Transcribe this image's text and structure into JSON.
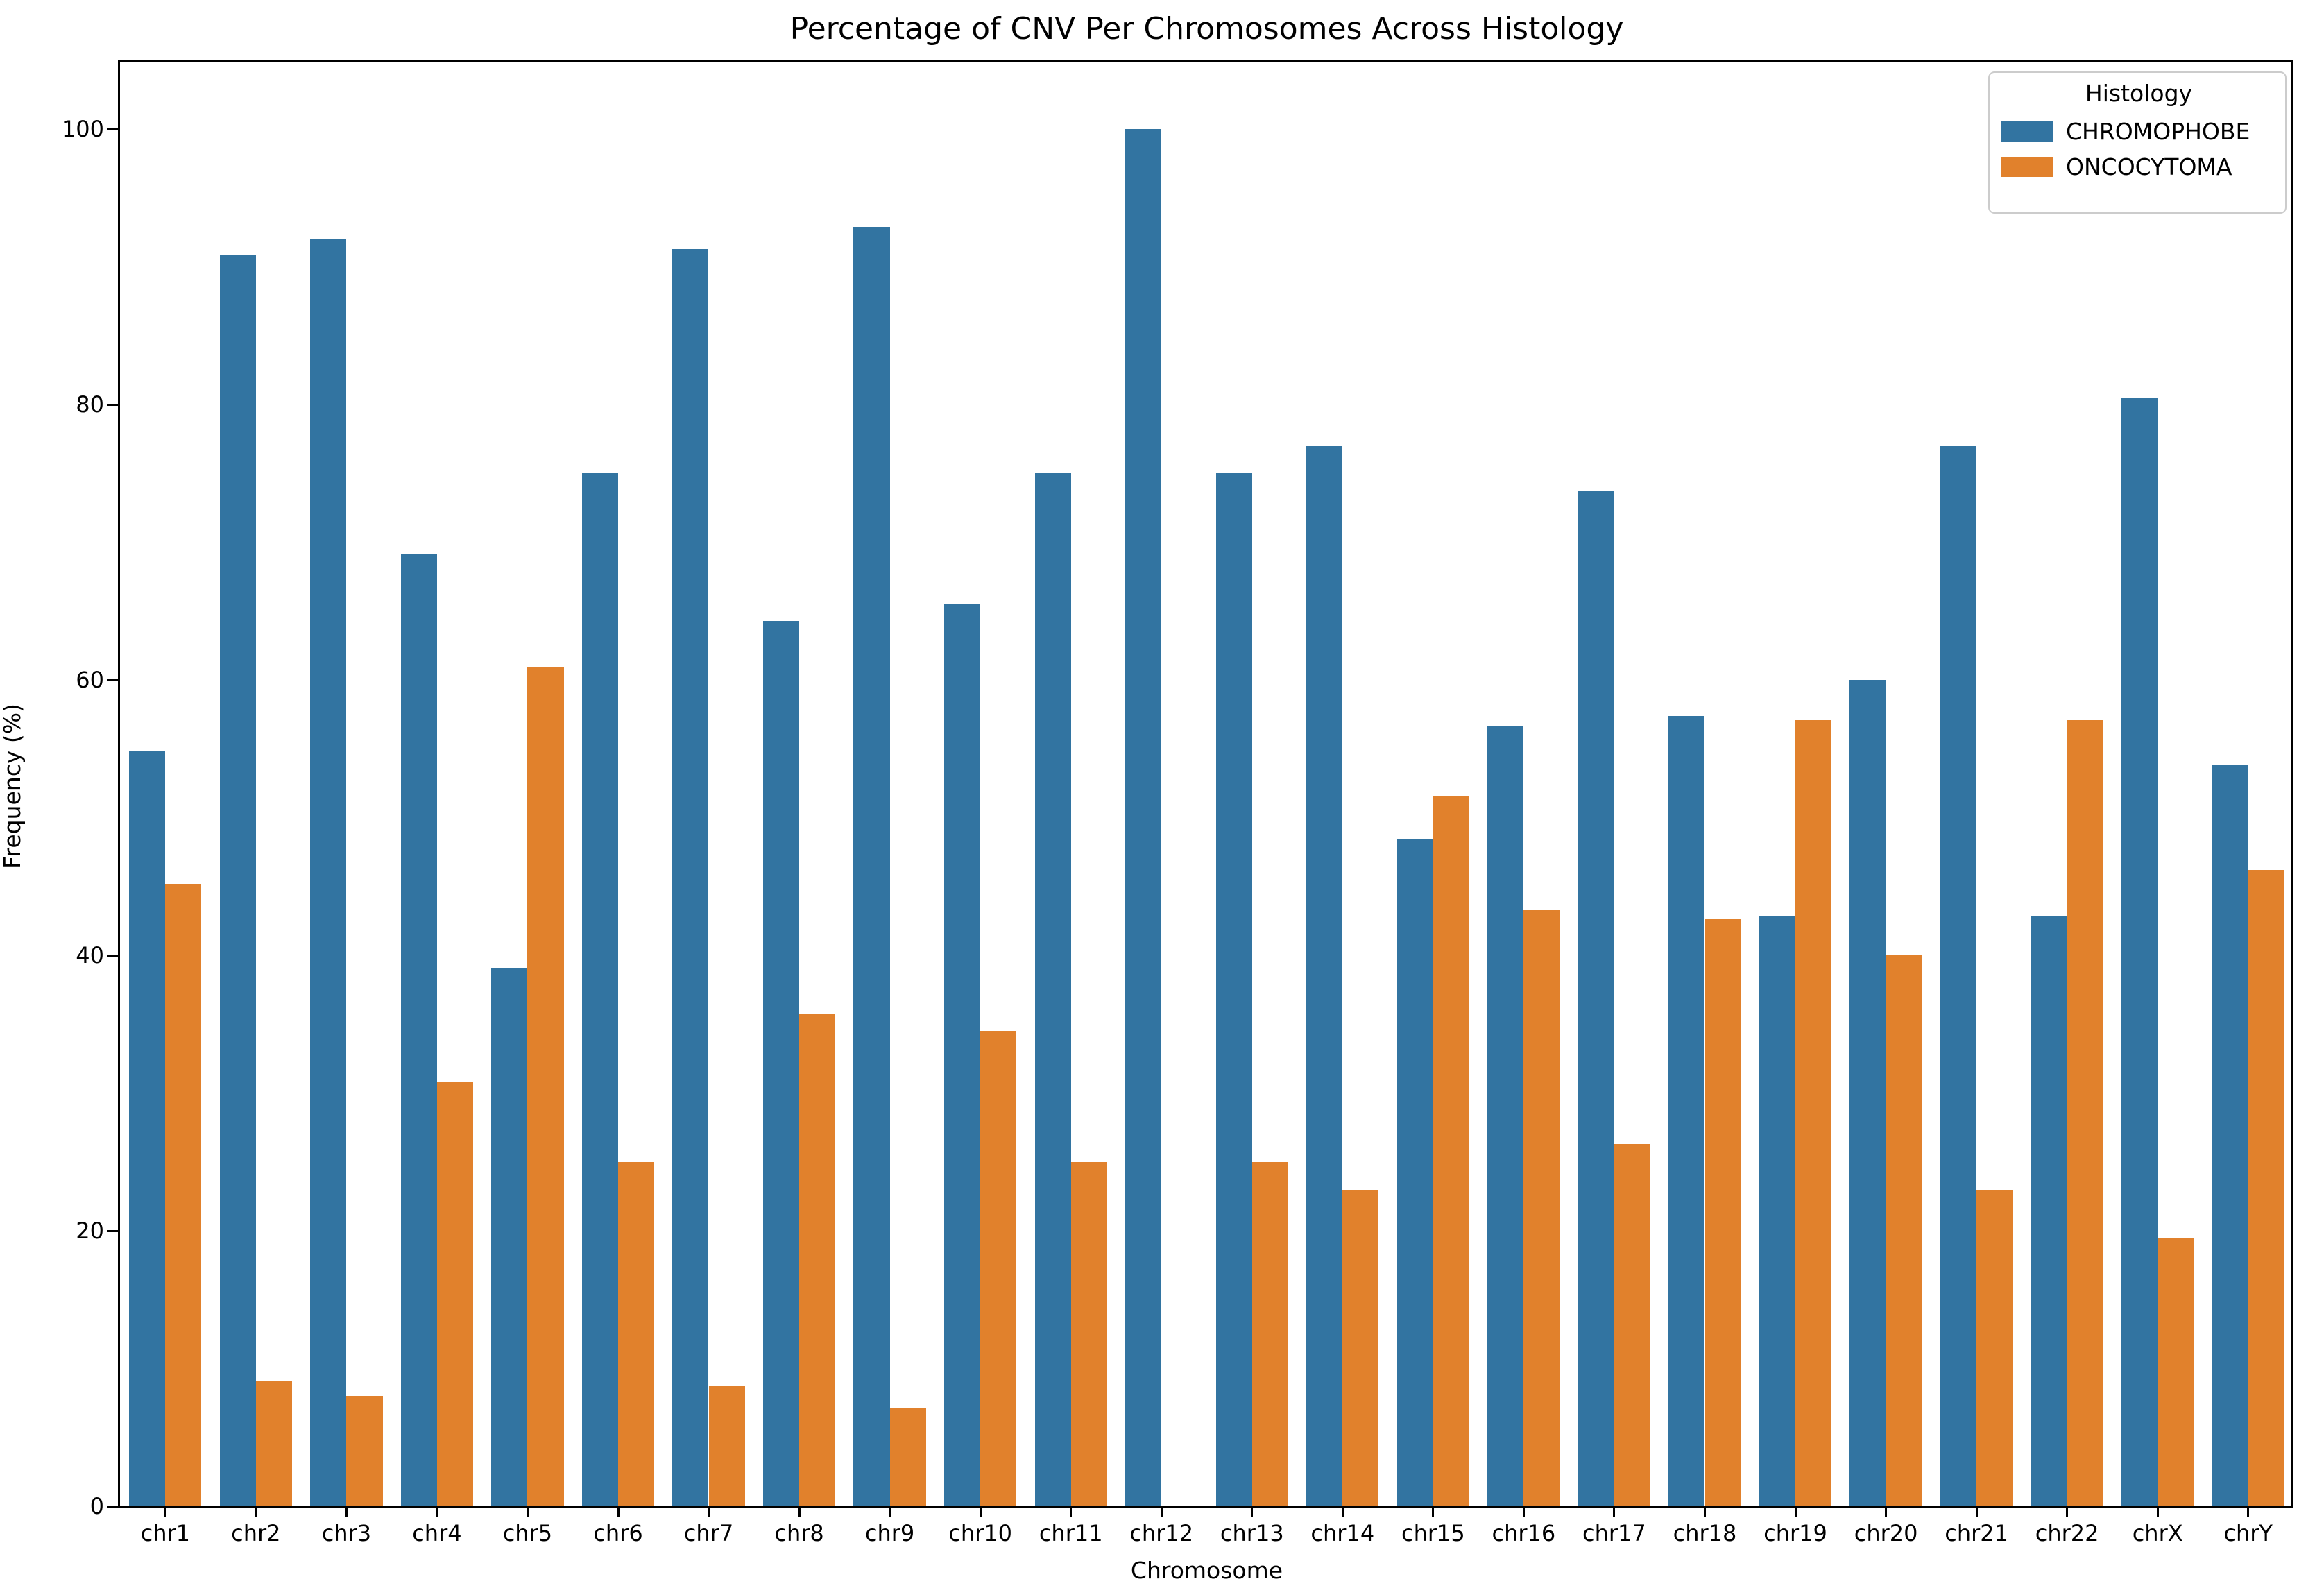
{
  "figure": {
    "title": "Percentage of CNV Per Chromosomes Across Histology"
  },
  "axes": {
    "xlabel": "Chromosome",
    "ylabel": "Frequency (%)",
    "y_tick_labels": [
      "0",
      "20",
      "40",
      "60",
      "80",
      "100"
    ]
  },
  "legend": {
    "title": "Histology",
    "entries": [
      {
        "label": "CHROMOPHOBE",
        "color": "#3274a1"
      },
      {
        "label": "ONCOCYTOMA",
        "color": "#e1812c"
      }
    ]
  },
  "chart_data": {
    "type": "bar",
    "title": "Percentage of CNV Per Chromosomes Across Histology",
    "xlabel": "Chromosome",
    "ylabel": "Frequency (%)",
    "ylim": [
      0,
      105
    ],
    "y_ticks": [
      0,
      20,
      40,
      60,
      80,
      100
    ],
    "grid": false,
    "legend_position": "upper right",
    "legend_title": "Histology",
    "categories": [
      "chr1",
      "chr2",
      "chr3",
      "chr4",
      "chr5",
      "chr6",
      "chr7",
      "chr8",
      "chr9",
      "chr10",
      "chr11",
      "chr12",
      "chr13",
      "chr14",
      "chr15",
      "chr16",
      "chr17",
      "chr18",
      "chr19",
      "chr20",
      "chr21",
      "chr22",
      "chrX",
      "chrY"
    ],
    "series": [
      {
        "name": "CHROMOPHOBE",
        "color": "#3274a1",
        "values": [
          54.8,
          90.9,
          92.0,
          69.2,
          39.1,
          75.0,
          91.3,
          64.3,
          92.9,
          65.5,
          75.0,
          100.0,
          75.0,
          77.0,
          48.4,
          56.7,
          73.7,
          57.4,
          42.9,
          60.0,
          77.0,
          42.9,
          80.5,
          53.8
        ]
      },
      {
        "name": "ONCOCYTOMA",
        "color": "#e1812c",
        "values": [
          45.2,
          9.1,
          8.0,
          30.8,
          60.9,
          25.0,
          8.7,
          35.7,
          7.1,
          34.5,
          25.0,
          0.0,
          25.0,
          23.0,
          51.6,
          43.3,
          26.3,
          42.6,
          57.1,
          40.0,
          23.0,
          57.1,
          19.5,
          46.2
        ]
      }
    ]
  }
}
